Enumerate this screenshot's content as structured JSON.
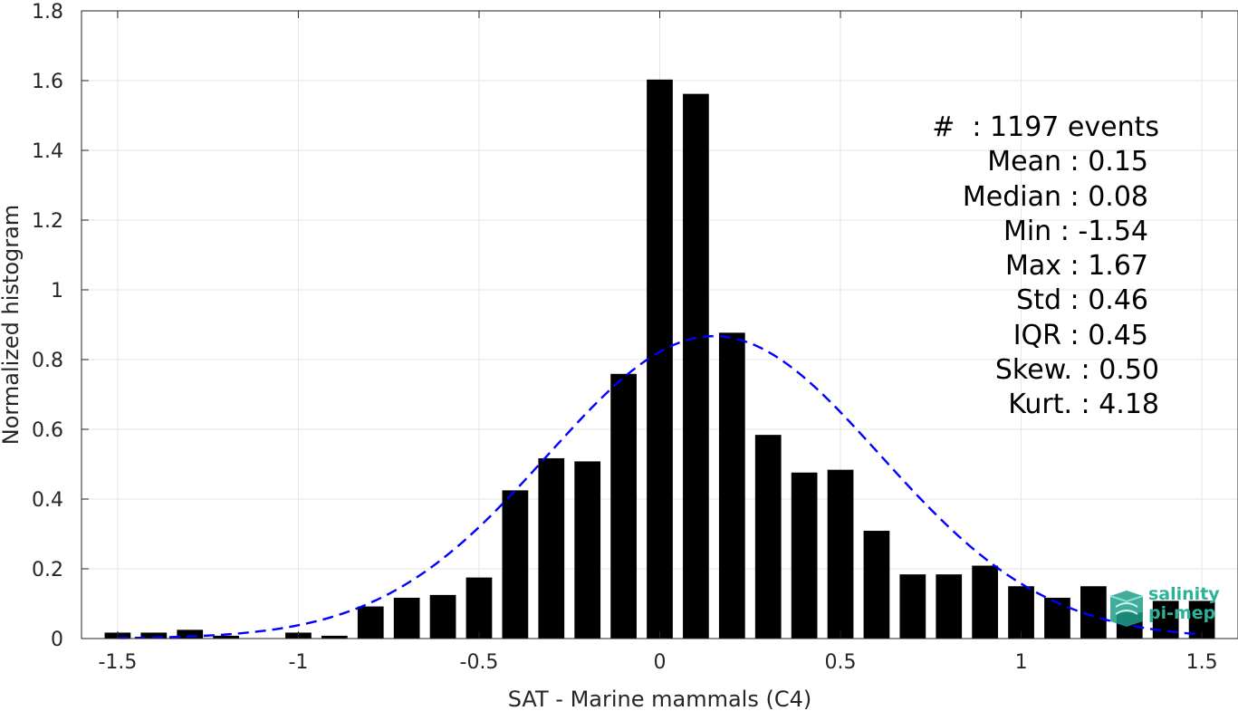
{
  "chart_data": {
    "type": "bar",
    "xlabel": "SAT - Marine mammals (C4)",
    "ylabel": "Normalized histogram",
    "xlim": [
      -1.6,
      1.6
    ],
    "ylim": [
      0,
      1.8
    ],
    "xticks": [
      "-1.5",
      "-1",
      "-0.5",
      "0",
      "0.5",
      "1",
      "1.5"
    ],
    "xtick_values": [
      -1.5,
      -1,
      -0.5,
      0,
      0.5,
      1,
      1.5
    ],
    "yticks": [
      "0",
      "0.2",
      "0.4",
      "0.6",
      "0.8",
      "1",
      "1.2",
      "1.4",
      "1.6",
      "1.8"
    ],
    "ytick_values": [
      0,
      0.2,
      0.4,
      0.6,
      0.8,
      1,
      1.2,
      1.4,
      1.6,
      1.8
    ],
    "grid": true,
    "bar_color": "#000000",
    "fit_color": "#0000ff",
    "bins": {
      "centers": [
        -1.5,
        -1.4,
        -1.3,
        -1.2,
        -1.1,
        -1.0,
        -0.9,
        -0.8,
        -0.7,
        -0.6,
        -0.5,
        -0.4,
        -0.3,
        -0.2,
        -0.1,
        0.0,
        0.1,
        0.2,
        0.3,
        0.4,
        0.5,
        0.6,
        0.7,
        0.8,
        0.9,
        1.0,
        1.1,
        1.2,
        1.3,
        1.4,
        1.5
      ],
      "values": [
        0.017,
        0.017,
        0.025,
        0.008,
        0,
        0.017,
        0.008,
        0.092,
        0.117,
        0.125,
        0.175,
        0.425,
        0.517,
        0.508,
        0.759,
        1.603,
        1.562,
        0.877,
        0.584,
        0.476,
        0.484,
        0.309,
        0.184,
        0.184,
        0.209,
        0.15,
        0.117,
        0.15,
        0.075,
        0.108,
        0.108
      ]
    },
    "fit": {
      "type": "normal",
      "mean": 0.15,
      "std": 0.46,
      "x_range": [
        -1.5,
        1.5
      ]
    },
    "stats": [
      "#  : 1197 events",
      "Mean : 0.15",
      "Median : 0.08",
      "Min : -1.54",
      "Max : 1.67",
      "Std : 0.46",
      "IQR : 0.45",
      "Skew. : 0.50",
      "Kurt. : 4.18"
    ]
  },
  "logo": {
    "line1": "salinity",
    "line2": "pi-mep",
    "color": "#2ab39a"
  }
}
